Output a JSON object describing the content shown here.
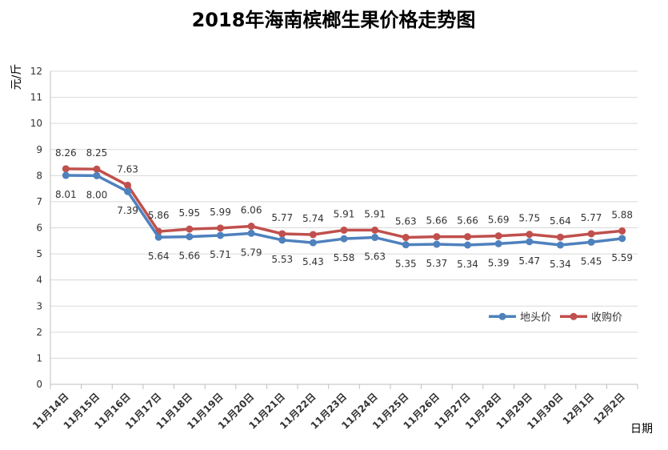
{
  "chart_data": {
    "type": "line",
    "title": "2018年海南槟榔生果价格走势图",
    "ylabel": "元/斤",
    "xlabel": "日期",
    "ylim": [
      0,
      12
    ],
    "yticks": [
      0,
      1,
      2,
      3,
      4,
      5,
      6,
      7,
      8,
      9,
      10,
      11,
      12
    ],
    "grid": true,
    "legend_position": "right",
    "categories": [
      "11月14日",
      "11月15日",
      "11月16日",
      "11月17日",
      "11月18日",
      "11月19日",
      "11月20日",
      "11月21日",
      "11月22日",
      "11月23日",
      "11月24日",
      "11月25日",
      "11月26日",
      "11月27日",
      "11月28日",
      "11月29日",
      "11月30日",
      "12月1日",
      "12月2日"
    ],
    "series": [
      {
        "name": "地头价",
        "color": "#4f81bd",
        "values": [
          8.01,
          8.0,
          7.39,
          5.64,
          5.66,
          5.71,
          5.79,
          5.53,
          5.43,
          5.58,
          5.63,
          5.35,
          5.37,
          5.34,
          5.39,
          5.47,
          5.34,
          5.45,
          5.59
        ],
        "labels": [
          "8.01",
          "8.00",
          "7.39",
          "5.64",
          "5.66",
          "5.71",
          "5.79",
          "5.53",
          "5.43",
          "5.58",
          "5.63",
          "5.35",
          "5.37",
          "5.34",
          "5.39",
          "5.47",
          "5.34",
          "5.45",
          "5.59"
        ]
      },
      {
        "name": "收购价",
        "color": "#c0504d",
        "values": [
          8.26,
          8.25,
          7.63,
          5.86,
          5.95,
          5.99,
          6.06,
          5.77,
          5.74,
          5.91,
          5.91,
          5.63,
          5.66,
          5.66,
          5.69,
          5.75,
          5.64,
          5.77,
          5.88
        ],
        "labels": [
          "8.26",
          "8.25",
          "7.63",
          "5.86",
          "5.95",
          "5.99",
          "6.06",
          "5.77",
          "5.74",
          "5.91",
          "5.91",
          "5.63",
          "5.66",
          "5.66",
          "5.69",
          "5.75",
          "5.64",
          "5.77",
          "5.88"
        ]
      }
    ]
  }
}
